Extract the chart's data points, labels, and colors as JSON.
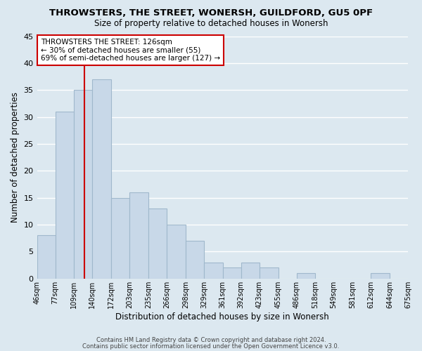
{
  "title": "THROWSTERS, THE STREET, WONERSH, GUILDFORD, GU5 0PF",
  "subtitle": "Size of property relative to detached houses in Wonersh",
  "xlabel": "Distribution of detached houses by size in Wonersh",
  "ylabel": "Number of detached properties",
  "bar_color": "#c8d8e8",
  "bar_edge_color": "#a0b8cc",
  "grid_color": "#ffffff",
  "bg_color": "#dce8f0",
  "vline_x": 126,
  "vline_color": "#cc0000",
  "bin_edges": [
    46,
    77,
    109,
    140,
    172,
    203,
    235,
    266,
    298,
    329,
    361,
    392,
    423,
    455,
    486,
    518,
    549,
    581,
    612,
    644,
    675
  ],
  "bin_labels": [
    "46sqm",
    "77sqm",
    "109sqm",
    "140sqm",
    "172sqm",
    "203sqm",
    "235sqm",
    "266sqm",
    "298sqm",
    "329sqm",
    "361sqm",
    "392sqm",
    "423sqm",
    "455sqm",
    "486sqm",
    "518sqm",
    "549sqm",
    "581sqm",
    "612sqm",
    "644sqm",
    "675sqm"
  ],
  "counts": [
    8,
    31,
    35,
    37,
    15,
    16,
    13,
    10,
    7,
    3,
    2,
    3,
    2,
    0,
    1,
    0,
    0,
    0,
    1,
    0
  ],
  "ylim": [
    0,
    45
  ],
  "yticks": [
    0,
    5,
    10,
    15,
    20,
    25,
    30,
    35,
    40,
    45
  ],
  "annotation_title": "THROWSTERS THE STREET: 126sqm",
  "annotation_line1": "← 30% of detached houses are smaller (55)",
  "annotation_line2": "69% of semi-detached houses are larger (127) →",
  "annotation_box_color": "#ffffff",
  "annotation_box_edge": "#cc0000",
  "footer_line1": "Contains HM Land Registry data © Crown copyright and database right 2024.",
  "footer_line2": "Contains public sector information licensed under the Open Government Licence v3.0."
}
